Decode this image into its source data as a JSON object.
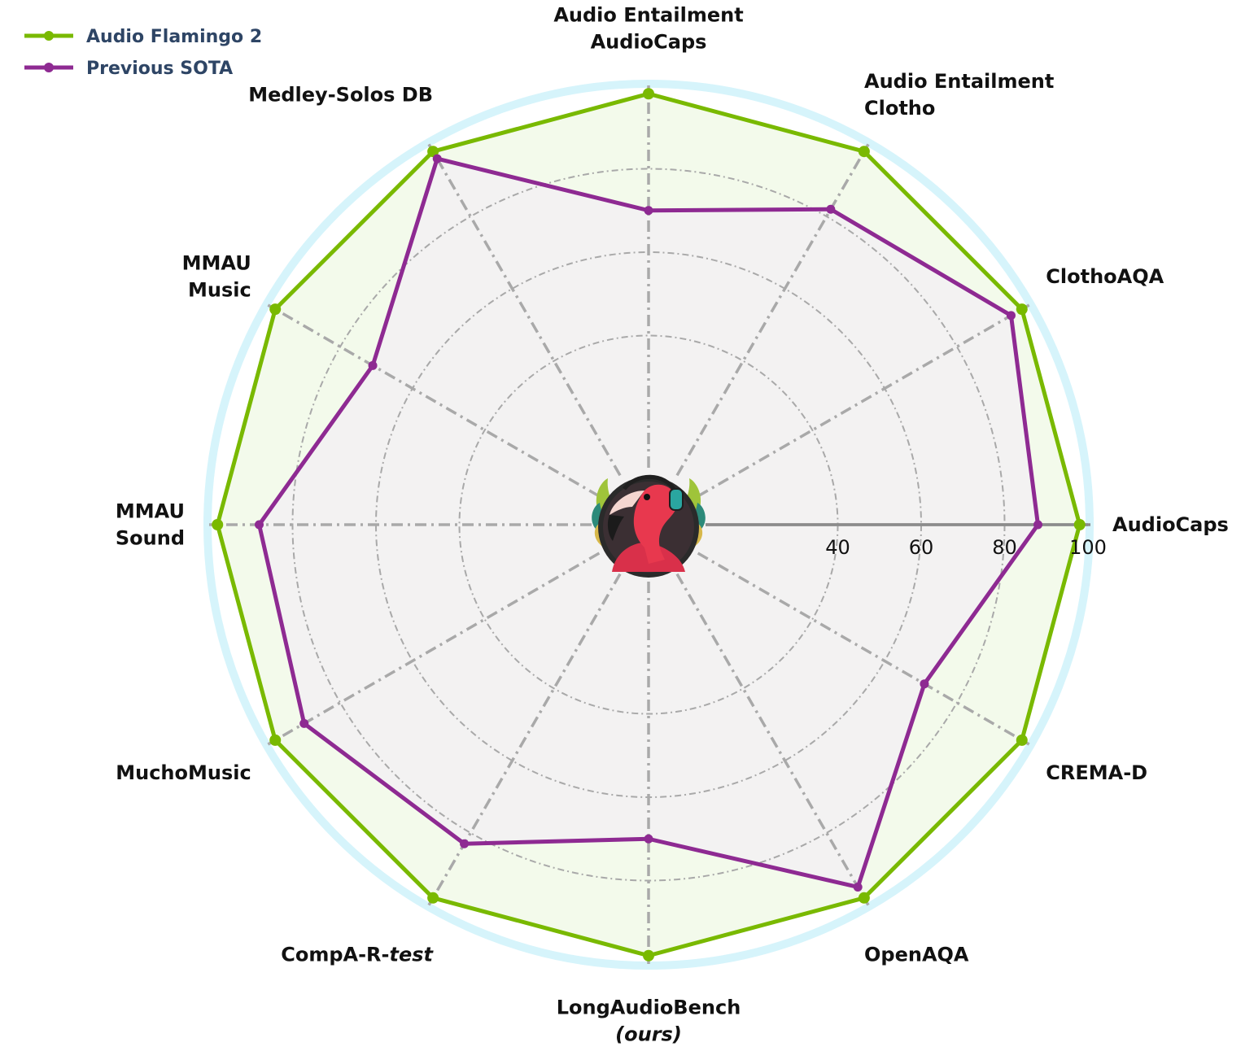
{
  "chart_data": {
    "type": "radar",
    "axes": [
      {
        "id": "audiocaps",
        "lines": [
          "AudioCaps"
        ]
      },
      {
        "id": "clothoaqa",
        "lines": [
          "ClothoAQA"
        ]
      },
      {
        "id": "ae-clotho",
        "lines": [
          "Audio Entailment",
          "Clotho"
        ]
      },
      {
        "id": "ae-audiocaps",
        "lines": [
          "Audio Entailment",
          "AudioCaps"
        ]
      },
      {
        "id": "medley",
        "lines": [
          "Medley-Solos DB"
        ]
      },
      {
        "id": "mmau-music",
        "lines": [
          "MMAU",
          "Music"
        ]
      },
      {
        "id": "mmau-sound",
        "lines": [
          "MMAU",
          "Sound"
        ]
      },
      {
        "id": "muchomusic",
        "lines": [
          "MuchoMusic"
        ]
      },
      {
        "id": "compa",
        "lines": [
          "CompA-R-test"
        ],
        "italic_suffix": "test"
      },
      {
        "id": "longaudiobench",
        "lines": [
          "LongAudioBench",
          "(ours)"
        ],
        "italic_line": 1
      },
      {
        "id": "openaqa",
        "lines": [
          "OpenAQA"
        ]
      },
      {
        "id": "cremad",
        "lines": [
          "CREMA-D"
        ]
      }
    ],
    "r_ticks": [
      40,
      60,
      80,
      100
    ],
    "r_range": [
      20,
      100
    ],
    "grid": true,
    "legend_position": "top-left",
    "series": [
      {
        "name": "Audio Flamingo 2",
        "color": "#79b900",
        "fill": "#f3faeb",
        "values": [
          98,
          98,
          98,
          98,
          98,
          98,
          98,
          98,
          98,
          98,
          98,
          98
        ]
      },
      {
        "name": "Previous SOTA",
        "color": "#8e2a92",
        "fill": "#f3f2f2",
        "values": [
          88,
          95,
          82,
          70,
          96,
          71,
          88,
          90,
          83,
          70,
          95,
          71
        ]
      }
    ],
    "outer_ring_color": "#d6f4fb",
    "logo": "flamingo-headphones-logo"
  }
}
